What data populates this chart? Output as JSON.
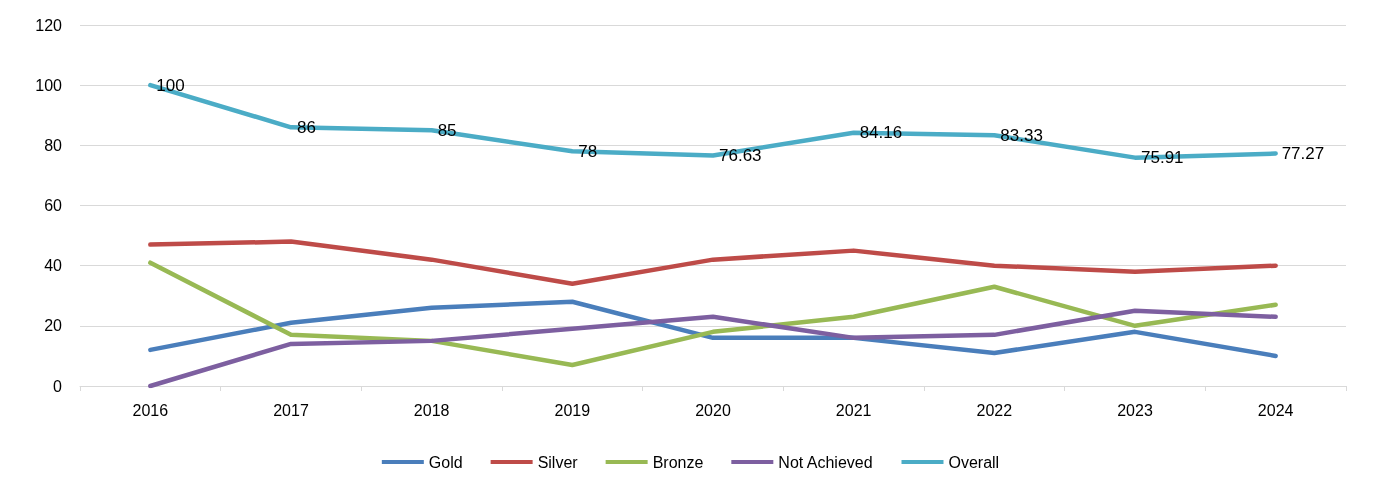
{
  "chart_data": {
    "type": "line",
    "categories": [
      "2016",
      "2017",
      "2018",
      "2019",
      "2020",
      "2021",
      "2022",
      "2023",
      "2024"
    ],
    "series": [
      {
        "name": "Gold",
        "color": "#4a7ebb",
        "values": [
          12,
          21,
          26,
          28,
          16,
          16,
          11,
          18,
          10
        ]
      },
      {
        "name": "Silver",
        "color": "#be4b48",
        "values": [
          47,
          48,
          42,
          34,
          42,
          45,
          40,
          38,
          40
        ]
      },
      {
        "name": "Bronze",
        "color": "#98b954",
        "values": [
          41,
          17,
          15,
          7,
          18,
          23,
          33,
          20,
          27
        ]
      },
      {
        "name": "Not Achieved",
        "color": "#7d5fa0",
        "values": [
          0,
          14,
          15,
          19,
          23,
          16,
          17,
          25,
          23
        ]
      },
      {
        "name": "Overall",
        "color": "#4bacc6",
        "values": [
          100,
          86,
          85,
          78,
          76.63,
          84.16,
          83.33,
          75.91,
          77.27
        ],
        "value_labels": [
          "100",
          "86",
          "85",
          "78",
          "76.63",
          "84.16",
          "83.33",
          "75.91",
          "77.27"
        ]
      }
    ],
    "ylim": [
      0,
      120
    ],
    "yticks": [
      0,
      20,
      40,
      60,
      80,
      100,
      120
    ],
    "grid": "y",
    "legend": "bottom",
    "marker": "none",
    "line_style": "solid"
  }
}
